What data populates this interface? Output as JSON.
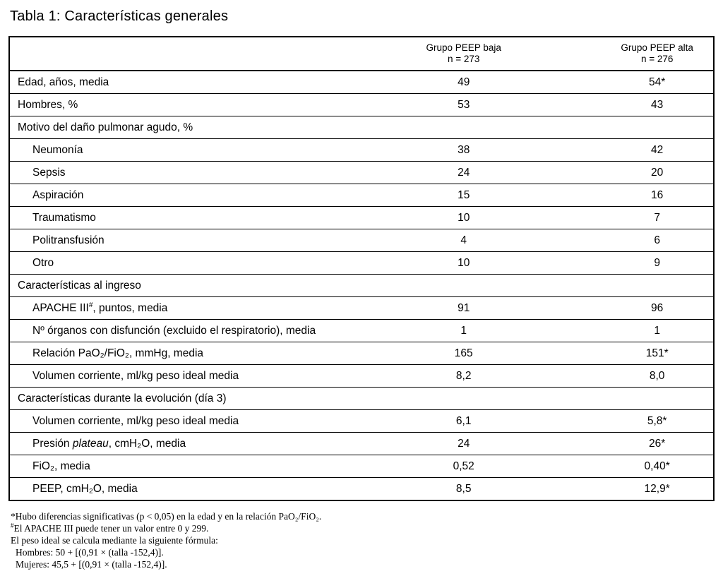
{
  "page": {
    "title": "Tabla 1: Características generales"
  },
  "table": {
    "columns": [
      {
        "group": "Grupo PEEP baja",
        "n": "n = 273"
      },
      {
        "group": "Grupo PEEP alta",
        "n": "n = 276"
      }
    ],
    "rows": [
      {
        "label": "Edad, años, media",
        "low": "49",
        "high": "54*"
      },
      {
        "label": "Hombres, %",
        "low": "53",
        "high": "43"
      },
      {
        "label": "Motivo del daño pulmonar agudo, %"
      },
      {
        "label": "Neumonía",
        "low": "38",
        "high": "42"
      },
      {
        "label": "Sepsis",
        "low": "24",
        "high": "20"
      },
      {
        "label": "Aspiración",
        "low": "15",
        "high": "16"
      },
      {
        "label": "Traumatismo",
        "low": "10",
        "high": "7"
      },
      {
        "label": "Politransfusión",
        "low": "4",
        "high": "6"
      },
      {
        "label": "Otro",
        "low": "10",
        "high": "9"
      },
      {
        "label": "Características al ingreso"
      },
      {
        "label_pre": "APACHE III",
        "label_sup": "#",
        "label_post": ", puntos, media",
        "low": "91",
        "high": "96"
      },
      {
        "label": "Nº órganos con disfunción (excluido el respiratorio), media",
        "low": "1",
        "high": "1"
      },
      {
        "label": "Relación PaO₂/FiO₂, mmHg, media",
        "low": "165",
        "high": "151*"
      },
      {
        "label": "Volumen corriente, ml/kg peso ideal media",
        "low": "8,2",
        "high": "8,0"
      },
      {
        "label": "Características durante la evolución (día 3)"
      },
      {
        "label": "Volumen corriente, ml/kg peso ideal media",
        "low": "6,1",
        "high": "5,8*"
      },
      {
        "label_pre": "Presión ",
        "label_italic": "plateau",
        "label_post": ", cmH₂O, media",
        "low": "24",
        "high": "26*"
      },
      {
        "label": "FiO₂, media",
        "low": "0,52",
        "high": "0,40*"
      },
      {
        "label": "PEEP, cmH₂O, media",
        "low": "8,5",
        "high": "12,9*"
      }
    ]
  },
  "footnotes": [
    {
      "text": "*Hubo diferencias significativas (p < 0,05) en la edad y en la relación PaO₂/FiO₂."
    },
    {
      "sup": "#",
      "text": "El APACHE III puede tener un valor entre 0 y 299."
    },
    {
      "text": "El peso ideal se calcula mediante la siguiente fórmula:"
    },
    {
      "text": "Hombres: 50 + [(0,91 × (talla -152,4)].",
      "indent": true
    },
    {
      "text": "Mujeres: 45,5 + [(0,91 × (talla -152,4)].",
      "indent": true
    }
  ]
}
